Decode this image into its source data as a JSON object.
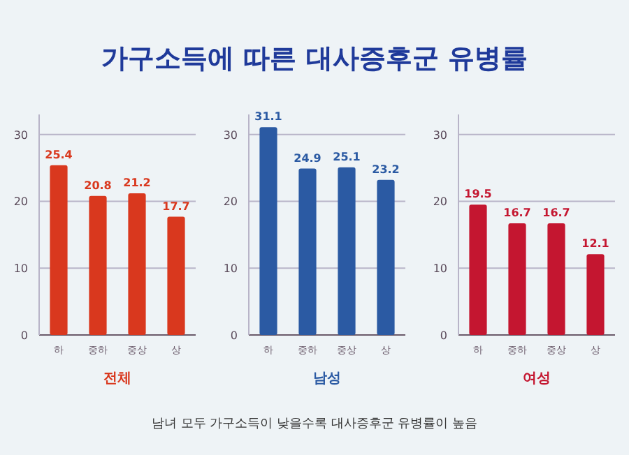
{
  "chart_data": [
    {
      "type": "bar",
      "title": "가구소득에 따른 대사증후군 유병률",
      "xlabel": "전체",
      "categories": [
        "하",
        "중하",
        "중상",
        "상"
      ],
      "values": [
        25.4,
        20.8,
        21.2,
        17.7
      ],
      "color": "#d9381e",
      "ylim": [
        0,
        33
      ],
      "yticks": [
        0,
        10,
        20,
        30
      ],
      "grid": "y",
      "data_labels": true
    },
    {
      "type": "bar",
      "xlabel": "남성",
      "categories": [
        "하",
        "중하",
        "중상",
        "상"
      ],
      "values": [
        31.1,
        24.9,
        25.1,
        23.2
      ],
      "color": "#2b5aa3",
      "ylim": [
        0,
        33
      ],
      "yticks": [
        0,
        10,
        20,
        30
      ],
      "grid": "y",
      "data_labels": true,
      "annotations": [
        "남녀 모두 가구소득이 낮을수록 대사증후군 유병률이 높음"
      ]
    },
    {
      "type": "bar",
      "xlabel": "여성",
      "categories": [
        "하",
        "중하",
        "중상",
        "상"
      ],
      "values": [
        19.5,
        16.7,
        16.7,
        12.1
      ],
      "color": "#c41630",
      "ylim": [
        0,
        33
      ],
      "yticks": [
        0,
        10,
        20,
        30
      ],
      "grid": "y",
      "data_labels": true
    }
  ]
}
